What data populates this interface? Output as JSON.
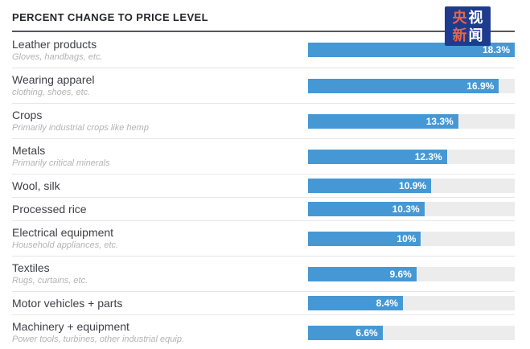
{
  "header": {
    "title": "PERCENT CHANGE TO PRICE LEVEL"
  },
  "logo": {
    "name": "CCTV News (央视新闻)",
    "chars": [
      "央",
      "视",
      "新",
      "闻"
    ],
    "bg_color": "#1e3b8d",
    "accent_color": "#e2654b",
    "text_color": "#ffffff"
  },
  "chart_data": {
    "type": "bar",
    "orientation": "horizontal",
    "title": "PERCENT CHANGE TO PRICE LEVEL",
    "unit": "%",
    "xlim": [
      0,
      18.3
    ],
    "grid": false,
    "legend": false,
    "value_label_position": "inside-end",
    "bar_color": "#4698d4",
    "track_color": "#ececec",
    "categories": [
      "Leather products",
      "Wearing apparel",
      "Crops",
      "Metals",
      "Wool, silk",
      "Processed rice",
      "Electrical equipment",
      "Textiles",
      "Motor vehicles + parts",
      "Machinery + equipment"
    ],
    "subtitles": [
      "Gloves, handbags, etc.",
      "clothing, shoes, etc.",
      "Primarily industrial crops like hemp",
      "Primarily critical minerals",
      "",
      "",
      "Household appliances, etc.",
      "Rugs, curtains, etc.",
      "",
      "Power tools, turbines, other industrial equip."
    ],
    "values": [
      18.3,
      16.9,
      13.3,
      12.3,
      10.9,
      10.3,
      10,
      9.6,
      8.4,
      6.6
    ],
    "value_labels": [
      "18.3%",
      "16.9%",
      "13.3%",
      "12.3%",
      "10.9%",
      "10.3%",
      "10%",
      "9.6%",
      "8.4%",
      "6.6%"
    ]
  }
}
